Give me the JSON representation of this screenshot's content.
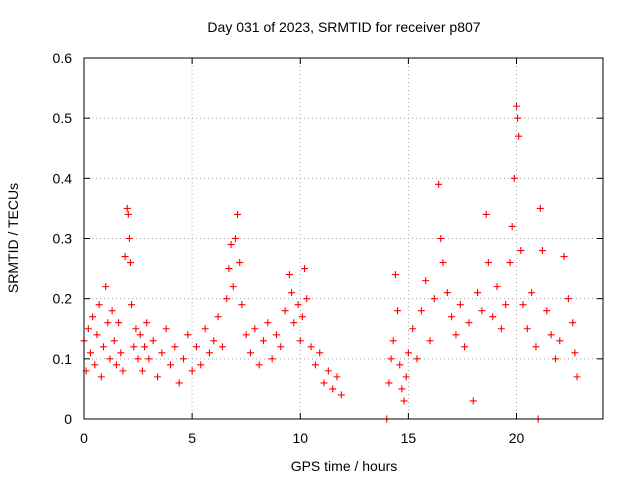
{
  "chart_data": {
    "type": "scatter",
    "title": "Day 031 of 2023, SRMTID for receiver p807",
    "xlabel": "GPS time / hours",
    "ylabel": "SRMTID / TECUs",
    "xlim": [
      0,
      24
    ],
    "ylim": [
      0,
      0.6
    ],
    "xticks": [
      0,
      5,
      10,
      15,
      20
    ],
    "xtick_labels": [
      "0",
      "5",
      "10",
      "15",
      "20"
    ],
    "yticks": [
      0,
      0.1,
      0.2,
      0.3,
      0.4,
      0.5,
      0.6
    ],
    "ytick_labels": [
      "0",
      "0.1",
      "0.2",
      "0.3",
      "0.4",
      "0.5",
      "0.6"
    ],
    "grid": true,
    "marker": "+",
    "color": "#ff0000",
    "series": [
      {
        "name": "SRMTID",
        "points": [
          [
            0.0,
            0.13
          ],
          [
            0.1,
            0.08
          ],
          [
            0.2,
            0.15
          ],
          [
            0.3,
            0.11
          ],
          [
            0.4,
            0.17
          ],
          [
            0.5,
            0.09
          ],
          [
            0.6,
            0.14
          ],
          [
            0.7,
            0.19
          ],
          [
            0.8,
            0.07
          ],
          [
            0.9,
            0.12
          ],
          [
            1.0,
            0.22
          ],
          [
            1.1,
            0.16
          ],
          [
            1.2,
            0.1
          ],
          [
            1.3,
            0.18
          ],
          [
            1.4,
            0.13
          ],
          [
            1.5,
            0.09
          ],
          [
            1.6,
            0.16
          ],
          [
            1.7,
            0.11
          ],
          [
            1.8,
            0.08
          ],
          [
            1.9,
            0.27
          ],
          [
            2.0,
            0.35
          ],
          [
            2.05,
            0.34
          ],
          [
            2.1,
            0.3
          ],
          [
            2.15,
            0.26
          ],
          [
            2.2,
            0.19
          ],
          [
            2.3,
            0.12
          ],
          [
            2.4,
            0.15
          ],
          [
            2.5,
            0.1
          ],
          [
            2.6,
            0.14
          ],
          [
            2.7,
            0.08
          ],
          [
            2.8,
            0.12
          ],
          [
            2.9,
            0.16
          ],
          [
            3.0,
            0.1
          ],
          [
            3.2,
            0.13
          ],
          [
            3.4,
            0.07
          ],
          [
            3.6,
            0.11
          ],
          [
            3.8,
            0.15
          ],
          [
            4.0,
            0.09
          ],
          [
            4.2,
            0.12
          ],
          [
            4.4,
            0.06
          ],
          [
            4.6,
            0.1
          ],
          [
            4.8,
            0.14
          ],
          [
            5.0,
            0.08
          ],
          [
            5.2,
            0.12
          ],
          [
            5.4,
            0.09
          ],
          [
            5.6,
            0.15
          ],
          [
            5.8,
            0.11
          ],
          [
            6.0,
            0.13
          ],
          [
            6.2,
            0.17
          ],
          [
            6.4,
            0.12
          ],
          [
            6.6,
            0.2
          ],
          [
            6.7,
            0.25
          ],
          [
            6.8,
            0.29
          ],
          [
            6.9,
            0.22
          ],
          [
            7.0,
            0.3
          ],
          [
            7.1,
            0.34
          ],
          [
            7.2,
            0.26
          ],
          [
            7.3,
            0.19
          ],
          [
            7.5,
            0.14
          ],
          [
            7.7,
            0.11
          ],
          [
            7.9,
            0.15
          ],
          [
            8.1,
            0.09
          ],
          [
            8.3,
            0.13
          ],
          [
            8.5,
            0.16
          ],
          [
            8.7,
            0.1
          ],
          [
            8.9,
            0.14
          ],
          [
            9.1,
            0.12
          ],
          [
            9.3,
            0.18
          ],
          [
            9.5,
            0.24
          ],
          [
            9.6,
            0.21
          ],
          [
            9.7,
            0.16
          ],
          [
            9.9,
            0.19
          ],
          [
            10.0,
            0.13
          ],
          [
            10.1,
            0.17
          ],
          [
            10.2,
            0.25
          ],
          [
            10.3,
            0.2
          ],
          [
            10.5,
            0.12
          ],
          [
            10.7,
            0.09
          ],
          [
            10.9,
            0.11
          ],
          [
            11.1,
            0.06
          ],
          [
            11.3,
            0.08
          ],
          [
            11.5,
            0.05
          ],
          [
            11.7,
            0.07
          ],
          [
            11.9,
            0.04
          ],
          [
            14.0,
            0.0
          ],
          [
            14.1,
            0.06
          ],
          [
            14.2,
            0.1
          ],
          [
            14.3,
            0.13
          ],
          [
            14.4,
            0.24
          ],
          [
            14.5,
            0.18
          ],
          [
            14.6,
            0.09
          ],
          [
            14.7,
            0.05
          ],
          [
            14.8,
            0.03
          ],
          [
            14.9,
            0.07
          ],
          [
            15.0,
            0.11
          ],
          [
            15.2,
            0.15
          ],
          [
            15.4,
            0.1
          ],
          [
            15.6,
            0.18
          ],
          [
            15.8,
            0.23
          ],
          [
            16.0,
            0.13
          ],
          [
            16.2,
            0.2
          ],
          [
            16.4,
            0.39
          ],
          [
            16.5,
            0.3
          ],
          [
            16.6,
            0.26
          ],
          [
            16.8,
            0.21
          ],
          [
            17.0,
            0.17
          ],
          [
            17.2,
            0.14
          ],
          [
            17.4,
            0.19
          ],
          [
            17.6,
            0.12
          ],
          [
            17.8,
            0.16
          ],
          [
            18.0,
            0.03
          ],
          [
            18.2,
            0.21
          ],
          [
            18.4,
            0.18
          ],
          [
            18.6,
            0.34
          ],
          [
            18.7,
            0.26
          ],
          [
            18.9,
            0.17
          ],
          [
            19.1,
            0.22
          ],
          [
            19.3,
            0.15
          ],
          [
            19.5,
            0.19
          ],
          [
            19.7,
            0.26
          ],
          [
            19.8,
            0.32
          ],
          [
            19.9,
            0.4
          ],
          [
            20.0,
            0.52
          ],
          [
            20.05,
            0.5
          ],
          [
            20.1,
            0.47
          ],
          [
            20.2,
            0.28
          ],
          [
            20.3,
            0.19
          ],
          [
            20.5,
            0.15
          ],
          [
            20.7,
            0.21
          ],
          [
            20.9,
            0.12
          ],
          [
            21.0,
            0.0
          ],
          [
            21.1,
            0.35
          ],
          [
            21.2,
            0.28
          ],
          [
            21.4,
            0.18
          ],
          [
            21.6,
            0.14
          ],
          [
            21.8,
            0.1
          ],
          [
            22.0,
            0.13
          ],
          [
            22.2,
            0.27
          ],
          [
            22.4,
            0.2
          ],
          [
            22.6,
            0.16
          ],
          [
            22.7,
            0.11
          ],
          [
            22.8,
            0.07
          ]
        ]
      }
    ]
  }
}
